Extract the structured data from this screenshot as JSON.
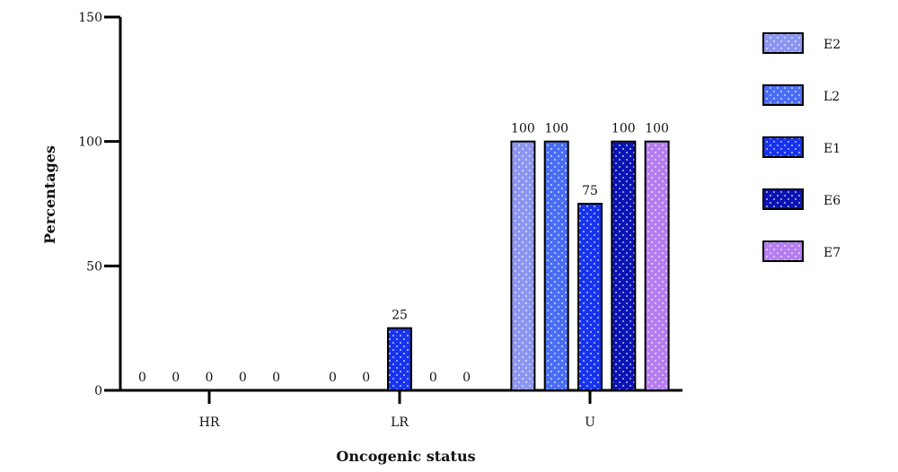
{
  "chart_data": {
    "type": "bar",
    "xlabel": "Oncogenic status",
    "ylabel": "Percentages",
    "ylim": [
      0,
      150
    ],
    "yticks": [
      "0",
      "50",
      "100",
      "150"
    ],
    "categories": [
      "HR",
      "LR",
      "U"
    ],
    "series": [
      {
        "name": "E2",
        "color": "#8c96f0",
        "values": [
          0,
          0,
          100
        ]
      },
      {
        "name": "L2",
        "color": "#4a6df5",
        "values": [
          0,
          0,
          100
        ]
      },
      {
        "name": "E1",
        "color": "#1733f0",
        "values": [
          0,
          25,
          75
        ]
      },
      {
        "name": "E6",
        "color": "#0a14b4",
        "values": [
          0,
          0,
          100
        ]
      },
      {
        "name": "E7",
        "color": "#b67df0",
        "values": [
          0,
          0,
          100
        ]
      }
    ],
    "legend_position": "right",
    "pattern": "dotted"
  }
}
